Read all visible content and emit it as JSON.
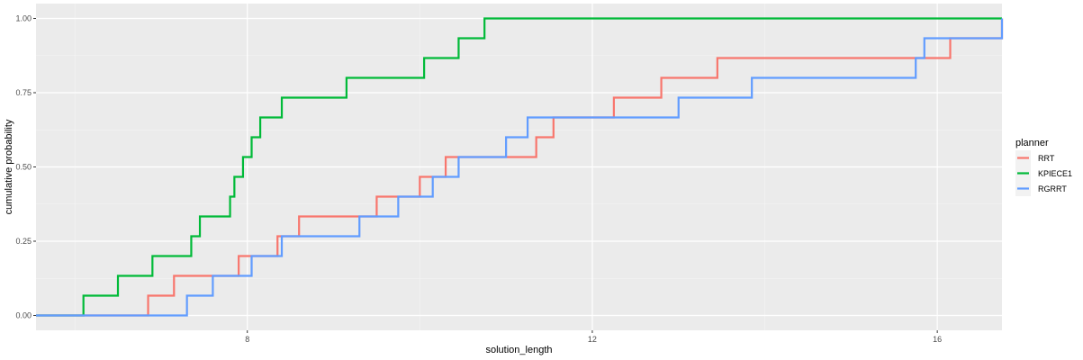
{
  "chart_data": {
    "type": "line",
    "step": true,
    "xlabel": "solution_length",
    "ylabel": "cumulative probability",
    "xlim": [
      5.55,
      16.75
    ],
    "ylim": [
      -0.05,
      1.05
    ],
    "x_ticks": [
      8,
      12,
      16
    ],
    "x_tick_labels": [
      "8",
      "12",
      "16"
    ],
    "y_ticks": [
      0,
      0.25,
      0.5,
      0.75,
      1
    ],
    "y_tick_labels": [
      "0.00",
      "0.25",
      "0.50",
      "0.75",
      "1.00"
    ],
    "grid": true,
    "legend": {
      "title": "planner",
      "position": "right"
    },
    "series": [
      {
        "name": "RRT",
        "color": "#F8766D",
        "x": [
          5.55,
          6.85,
          7.15,
          7.9,
          8.35,
          8.6,
          9.5,
          10.0,
          10.3,
          11.35,
          11.55,
          12.25,
          12.8,
          13.45,
          16.15,
          16.75
        ],
        "y": [
          0,
          0.0667,
          0.1333,
          0.2,
          0.2667,
          0.3333,
          0.4,
          0.4667,
          0.5333,
          0.6,
          0.6667,
          0.7333,
          0.8,
          0.8667,
          0.9333,
          1.0
        ]
      },
      {
        "name": "KPIECE1",
        "color": "#00BA38",
        "x": [
          5.55,
          6.1,
          6.5,
          6.9,
          7.35,
          7.45,
          7.8,
          7.85,
          7.95,
          8.05,
          8.15,
          8.4,
          9.15,
          10.05,
          10.45,
          10.75,
          16.75
        ],
        "y": [
          0,
          0.0667,
          0.1333,
          0.2,
          0.2667,
          0.3333,
          0.4,
          0.4667,
          0.5333,
          0.6,
          0.6667,
          0.7333,
          0.8,
          0.8667,
          0.9333,
          1.0,
          1.0
        ]
      },
      {
        "name": "RGRRT",
        "color": "#619CFF",
        "x": [
          5.55,
          7.3,
          7.6,
          8.05,
          8.4,
          9.3,
          9.75,
          10.15,
          10.45,
          11.0,
          11.25,
          13.0,
          13.85,
          15.75,
          15.85,
          16.75
        ],
        "y": [
          0,
          0.0667,
          0.1333,
          0.2,
          0.2667,
          0.3333,
          0.4,
          0.4667,
          0.5333,
          0.6,
          0.6667,
          0.7333,
          0.8,
          0.8667,
          0.9333,
          1.0
        ]
      }
    ]
  }
}
